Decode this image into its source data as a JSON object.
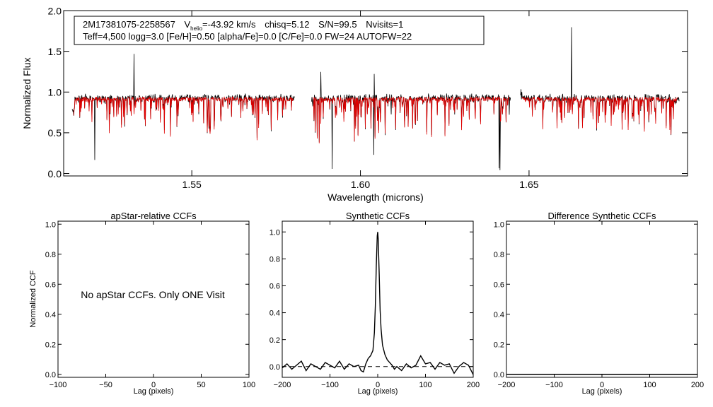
{
  "colors": {
    "observed": "#000000",
    "model": "#e00000",
    "axis": "#000000",
    "background": "#ffffff"
  },
  "info_box": {
    "star_id": "2M17381075-2258567",
    "v_label": "V",
    "v_sub": "helio",
    "v_value": "=-43.92 km/s",
    "chisq": "chisq=5.12",
    "snr": "S/N=99.5",
    "nvisits": "Nvisits=1",
    "line2": "Teff=4,500 logg=3.0 [Fe/H]=0.50 [alpha/Fe]=0.0 [C/Fe]=0.0 FW=24 AUTOFW=22"
  },
  "no_ccf_message": "No apStar CCFs.  Only ONE Visit",
  "chart_data": [
    {
      "id": "spectrum",
      "type": "line",
      "title": "",
      "xlabel": "Wavelength (microns)",
      "ylabel": "Normalized Flux",
      "xlim": [
        1.512,
        1.697
      ],
      "ylim": [
        -0.03,
        2.0
      ],
      "xticks": [
        1.55,
        1.6,
        1.65
      ],
      "xtick_labels": [
        "1.55",
        "1.60",
        "1.65"
      ],
      "yticks": [
        0.0,
        0.5,
        1.0,
        1.5,
        2.0
      ],
      "ytick_labels": [
        "0.0",
        "0.5",
        "1.0",
        "1.5",
        "2.0"
      ],
      "chips": [
        [
          1.5145,
          1.5805
        ],
        [
          1.5855,
          1.6445
        ],
        [
          1.6475,
          1.6945
        ]
      ],
      "series": [
        {
          "name": "observed spectrum",
          "color": "#000000",
          "continuum": 0.95
        },
        {
          "name": "synthetic model",
          "color": "#e00000",
          "continuum": 0.94
        }
      ]
    },
    {
      "id": "apstar-ccf",
      "type": "line",
      "title": "apStar-relative CCFs",
      "xlabel": "Lag (pixels)",
      "ylabel": "Normalized CCF",
      "xlim": [
        -100,
        100
      ],
      "ylim": [
        -0.02,
        1.02
      ],
      "xticks": [
        -100,
        -50,
        0,
        50,
        100
      ],
      "xtick_labels": [
        "−100",
        "−50",
        "0",
        "50",
        "100"
      ],
      "yticks": [
        0.0,
        0.2,
        0.4,
        0.6,
        0.8,
        1.0
      ],
      "ytick_labels": [
        "0.0",
        "0.2",
        "0.4",
        "0.6",
        "0.8",
        "1.0"
      ],
      "series": []
    },
    {
      "id": "synthetic-ccf",
      "type": "line",
      "title": "Synthetic CCFs",
      "xlabel": "Lag (pixels)",
      "ylabel": "",
      "xlim": [
        -200,
        200
      ],
      "ylim": [
        -0.08,
        1.08
      ],
      "xticks": [
        -200,
        -100,
        0,
        100,
        200
      ],
      "xtick_labels": [
        "−200",
        "−100",
        "0",
        "100",
        "200"
      ],
      "yticks": [
        0.0,
        0.2,
        0.4,
        0.6,
        0.8,
        1.0
      ],
      "ytick_labels": [
        "0.0",
        "0.2",
        "0.4",
        "0.6",
        "0.8",
        "1.0"
      ],
      "baseline": 0.0,
      "peak": {
        "x": 0,
        "y": 1.0
      },
      "series": [
        {
          "name": "synthetic CCF",
          "color": "#000000",
          "x": [
            -200,
            -190,
            -180,
            -170,
            -160,
            -150,
            -140,
            -130,
            -120,
            -110,
            -100,
            -90,
            -80,
            -70,
            -60,
            -50,
            -40,
            -35,
            -30,
            -25,
            -20,
            -15,
            -10,
            -7,
            -5,
            -3,
            -1,
            0,
            1,
            3,
            5,
            7,
            10,
            15,
            20,
            25,
            30,
            35,
            40,
            50,
            60,
            70,
            80,
            90,
            100,
            110,
            120,
            130,
            140,
            150,
            160,
            170,
            180,
            190,
            200
          ],
          "y": [
            -0.01,
            0.02,
            -0.02,
            0.01,
            0.04,
            -0.03,
            0.02,
            0.0,
            -0.02,
            0.03,
            0.01,
            -0.01,
            0.04,
            -0.02,
            0.02,
            0.0,
            0.01,
            -0.03,
            -0.04,
            0.02,
            0.06,
            0.08,
            0.12,
            0.25,
            0.45,
            0.75,
            0.97,
            1.0,
            0.95,
            0.7,
            0.42,
            0.28,
            0.16,
            0.09,
            0.05,
            0.03,
            0.01,
            -0.02,
            0.0,
            -0.03,
            0.02,
            -0.01,
            0.01,
            0.08,
            0.02,
            0.03,
            -0.02,
            0.03,
            0.01,
            0.02,
            -0.05,
            0.0,
            0.03,
            0.01,
            -0.06
          ]
        }
      ]
    },
    {
      "id": "difference-ccf",
      "type": "line",
      "title": "Difference Synthetic CCFs",
      "xlabel": "Lag (pixels)",
      "ylabel": "",
      "xlim": [
        -200,
        200
      ],
      "ylim": [
        -0.02,
        1.02
      ],
      "xticks": [
        -200,
        -100,
        0,
        100,
        200
      ],
      "xtick_labels": [
        "−200",
        "−100",
        "0",
        "100",
        "200"
      ],
      "yticks": [
        0.0,
        0.2,
        0.4,
        0.6,
        0.8,
        1.0
      ],
      "ytick_labels": [
        "0.0",
        "0.2",
        "0.4",
        "0.6",
        "0.8",
        "1.0"
      ],
      "series": [
        {
          "name": "difference CCF",
          "color": "#000000",
          "x": [
            -200,
            200
          ],
          "y": [
            0.0,
            0.0
          ]
        }
      ]
    }
  ]
}
